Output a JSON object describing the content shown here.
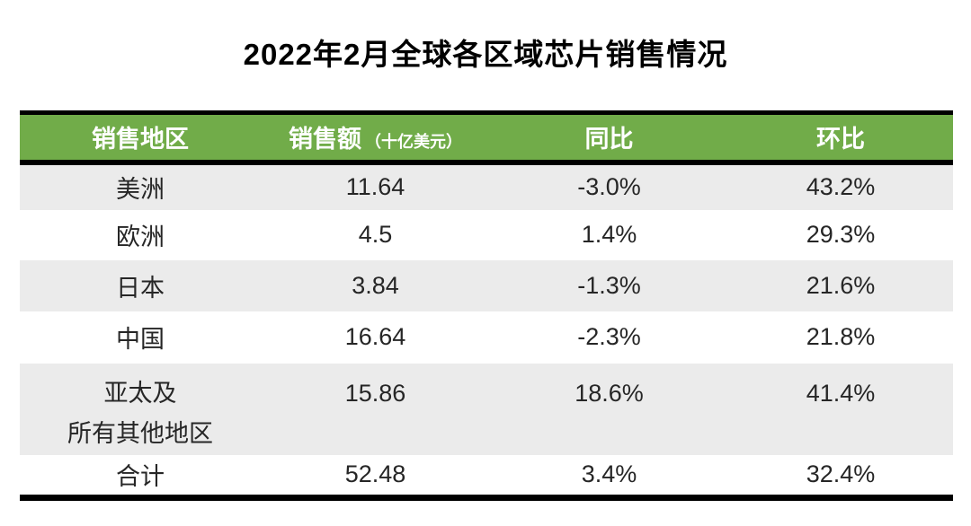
{
  "title": "2022年2月全球各区域芯片销售情况",
  "colors": {
    "header_bg": "#71AC49",
    "header_text": "#FFFFFF",
    "row_alt_bg": "#EBEBEB",
    "row_bg": "#FFFFFF",
    "rule": "#000000",
    "body_text": "#262626"
  },
  "table": {
    "headers": [
      {
        "label": "销售地区",
        "sub": ""
      },
      {
        "label": "销售额",
        "sub": "（十亿美元）"
      },
      {
        "label": "同比",
        "sub": ""
      },
      {
        "label": "环比",
        "sub": ""
      }
    ],
    "rows": [
      {
        "region": "美洲",
        "sales": "11.64",
        "yoy": "-3.0%",
        "mom": "43.2%"
      },
      {
        "region": "欧洲",
        "sales": "4.5",
        "yoy": "1.4%",
        "mom": "29.3%"
      },
      {
        "region": "日本",
        "sales": "3.84",
        "yoy": "-1.3%",
        "mom": "21.6%"
      },
      {
        "region": "中国",
        "sales": "16.64",
        "yoy": "-2.3%",
        "mom": "21.8%"
      },
      {
        "region": "亚太及",
        "region_line2": "所有其他地区",
        "sales": "15.86",
        "yoy": "18.6%",
        "mom": "41.4%"
      },
      {
        "region": "合计",
        "sales": "52.48",
        "yoy": "3.4%",
        "mom": "32.4%"
      }
    ]
  },
  "chart_data": {
    "type": "table",
    "title": "2022年2月全球各区域芯片销售情况",
    "columns": [
      "销售地区",
      "销售额（十亿美元）",
      "同比",
      "环比"
    ],
    "rows": [
      [
        "美洲",
        11.64,
        "-3.0%",
        "43.2%"
      ],
      [
        "欧洲",
        4.5,
        "1.4%",
        "29.3%"
      ],
      [
        "日本",
        3.84,
        "-1.3%",
        "21.6%"
      ],
      [
        "中国",
        16.64,
        "-2.3%",
        "21.8%"
      ],
      [
        "亚太及所有其他地区",
        15.86,
        "18.6%",
        "41.4%"
      ],
      [
        "合计",
        52.48,
        "3.4%",
        "32.4%"
      ]
    ]
  }
}
